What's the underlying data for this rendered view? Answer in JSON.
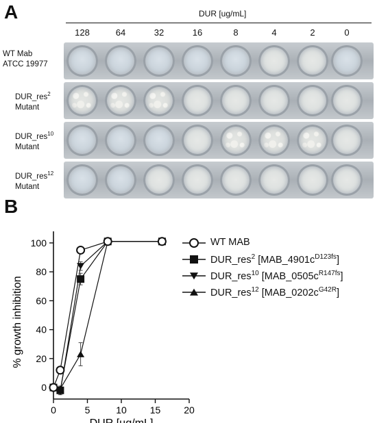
{
  "panelA": {
    "letter": "A",
    "concentration_title": "DUR [ug/mL]",
    "concentrations": [
      "128",
      "64",
      "32",
      "16",
      "8",
      "4",
      "2",
      "0"
    ],
    "rows": [
      {
        "line1": "WT Mab",
        "line2": "ATCC 19977",
        "line1_sup": "",
        "wells": [
          "clear",
          "clear",
          "clear",
          "clear",
          "clear",
          "light",
          "light",
          "clear"
        ]
      },
      {
        "line1": "DUR_res",
        "line1_sup": "2",
        "line2": "Mutant",
        "wells": [
          "growth",
          "growth",
          "growth",
          "light",
          "light",
          "light",
          "light",
          "light"
        ]
      },
      {
        "line1": "DUR_res",
        "line1_sup": "10",
        "line2": "Mutant",
        "wells": [
          "clear",
          "clear",
          "clear",
          "light",
          "growth",
          "growth",
          "growth",
          "light"
        ]
      },
      {
        "line1": "DUR_res",
        "line1_sup": "12",
        "line2": "Mutant",
        "wells": [
          "clear",
          "clear",
          "light",
          "light",
          "light",
          "light",
          "light",
          "light"
        ]
      }
    ]
  },
  "panelB": {
    "letter": "B",
    "legend": [
      {
        "marker": "open-circle",
        "text": "WT MAB",
        "sup": "",
        "suffix": ""
      },
      {
        "marker": "filled-square",
        "text": "DUR_res",
        "sup": "2",
        "mid": " [MAB_4901c",
        "sup2": "D123fs",
        "suffix": "]"
      },
      {
        "marker": "filled-triangle-down",
        "text": "DUR_res",
        "sup": "10",
        "mid": " [MAB_0505c",
        "sup2": "R147fs",
        "suffix": "]"
      },
      {
        "marker": "filled-triangle-up",
        "text": "DUR_res",
        "sup": "12",
        "mid": " [MAB_0202c",
        "sup2": "G42R",
        "suffix": "]"
      }
    ]
  },
  "chart_data": {
    "type": "line",
    "xlabel": "DUR [µg/mL]",
    "ylabel": "% growth inhibition",
    "xlim": [
      0,
      20
    ],
    "ylim": [
      -8,
      108
    ],
    "xticks": [
      "0",
      "5",
      "10",
      "15",
      "20"
    ],
    "yticks": [
      "0",
      "20",
      "40",
      "60",
      "80",
      "100"
    ],
    "legend_position": "right",
    "series": [
      {
        "name": "WT MAB",
        "marker": "open-circle",
        "x": [
          0,
          1,
          4,
          8,
          16
        ],
        "y": [
          0,
          12,
          95,
          101,
          101
        ],
        "err": [
          0,
          2,
          2,
          1,
          1
        ]
      },
      {
        "name": "DUR_res2 [MAB_4901cD123fs]",
        "marker": "filled-square",
        "x": [
          0,
          1,
          4,
          8,
          16
        ],
        "y": [
          0,
          -2,
          75,
          101,
          101
        ],
        "err": [
          0,
          2,
          4,
          1,
          1
        ]
      },
      {
        "name": "DUR_res10 [MAB_0505cR147fs]",
        "marker": "filled-triangle-down",
        "x": [
          0,
          1,
          4,
          8,
          16
        ],
        "y": [
          0,
          -3,
          84,
          101,
          101
        ],
        "err": [
          0,
          2,
          3,
          1,
          1
        ]
      },
      {
        "name": "DUR_res12 [MAB_0202cG42R]",
        "marker": "filled-triangle-up",
        "x": [
          0,
          1,
          4,
          8,
          16
        ],
        "y": [
          0,
          -1,
          23,
          101,
          101
        ],
        "err": [
          0,
          2,
          8,
          1,
          1
        ]
      }
    ]
  }
}
